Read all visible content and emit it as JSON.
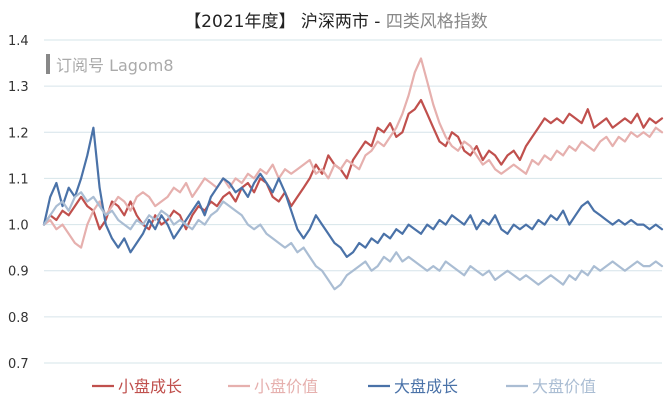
{
  "chart_data": {
    "type": "line",
    "title_main": "【2021年度】 沪深两市",
    "title_sep": " - ",
    "title_sub": "四类风格指数",
    "watermark": "订阅号 Lagom8",
    "ylim": [
      0.7,
      1.4
    ],
    "yticks": [
      "0.7",
      "0.8",
      "0.9",
      "1.0",
      "1.1",
      "1.2",
      "1.3",
      "1.4"
    ],
    "grid": true,
    "legend_position": "bottom",
    "x": [
      "p00",
      "p01",
      "p02",
      "p03",
      "p04",
      "p05",
      "p06",
      "p07",
      "p08",
      "p09",
      "p10",
      "p11",
      "p12",
      "p13",
      "p14",
      "p15",
      "p16",
      "p17",
      "p18",
      "p19",
      "p20",
      "p21",
      "p22",
      "p23",
      "p24",
      "p25",
      "p26",
      "p27",
      "p28",
      "p29",
      "p30",
      "p31",
      "p32",
      "p33",
      "p34",
      "p35",
      "p36",
      "p37",
      "p38",
      "p39",
      "p40",
      "p41",
      "p42",
      "p43",
      "p44",
      "p45",
      "p46",
      "p47",
      "p48",
      "p49",
      "p50",
      "p51",
      "p52",
      "p53",
      "p54",
      "p55",
      "p56",
      "p57",
      "p58",
      "p59",
      "p60",
      "p61",
      "p62",
      "p63",
      "p64",
      "p65",
      "p66",
      "p67",
      "p68",
      "p69",
      "p70",
      "p71",
      "p72",
      "p73",
      "p74",
      "p75",
      "p76",
      "p77",
      "p78",
      "p79",
      "p80",
      "p81",
      "p82",
      "p83",
      "p84",
      "p85",
      "p86",
      "p87",
      "p88",
      "p89",
      "p90",
      "p91",
      "p92",
      "p93",
      "p94",
      "p95",
      "p96",
      "p97",
      "p98",
      "p99",
      "p100"
    ],
    "series": [
      {
        "name": "小盘成长",
        "color": "#c0504d",
        "values": [
          1.0,
          1.02,
          1.01,
          1.03,
          1.02,
          1.04,
          1.06,
          1.04,
          1.03,
          0.99,
          1.01,
          1.05,
          1.04,
          1.02,
          1.05,
          1.02,
          1.0,
          0.99,
          1.02,
          1.0,
          1.01,
          1.03,
          1.02,
          0.99,
          1.02,
          1.04,
          1.03,
          1.05,
          1.04,
          1.06,
          1.07,
          1.05,
          1.08,
          1.09,
          1.07,
          1.1,
          1.09,
          1.06,
          1.05,
          1.07,
          1.04,
          1.06,
          1.08,
          1.1,
          1.13,
          1.11,
          1.15,
          1.13,
          1.12,
          1.1,
          1.14,
          1.16,
          1.18,
          1.17,
          1.21,
          1.2,
          1.22,
          1.19,
          1.2,
          1.24,
          1.25,
          1.27,
          1.24,
          1.21,
          1.18,
          1.17,
          1.2,
          1.19,
          1.16,
          1.15,
          1.17,
          1.14,
          1.16,
          1.15,
          1.13,
          1.15,
          1.16,
          1.14,
          1.17,
          1.19,
          1.21,
          1.23,
          1.22,
          1.23,
          1.22,
          1.24,
          1.23,
          1.22,
          1.25,
          1.21,
          1.22,
          1.23,
          1.21,
          1.22,
          1.23,
          1.22,
          1.24,
          1.21,
          1.23,
          1.22,
          1.23
        ]
      },
      {
        "name": "小盘价值",
        "color": "#e6b0ae",
        "values": [
          1.0,
          1.01,
          0.99,
          1.0,
          0.98,
          0.96,
          0.95,
          1.0,
          1.03,
          1.05,
          1.02,
          1.04,
          1.06,
          1.05,
          1.03,
          1.06,
          1.07,
          1.06,
          1.04,
          1.05,
          1.06,
          1.08,
          1.07,
          1.09,
          1.06,
          1.08,
          1.1,
          1.09,
          1.08,
          1.1,
          1.08,
          1.1,
          1.09,
          1.11,
          1.1,
          1.12,
          1.11,
          1.13,
          1.1,
          1.12,
          1.11,
          1.12,
          1.13,
          1.14,
          1.11,
          1.12,
          1.1,
          1.13,
          1.12,
          1.14,
          1.13,
          1.12,
          1.15,
          1.16,
          1.18,
          1.17,
          1.19,
          1.21,
          1.24,
          1.28,
          1.33,
          1.36,
          1.31,
          1.26,
          1.22,
          1.19,
          1.17,
          1.16,
          1.18,
          1.17,
          1.15,
          1.13,
          1.14,
          1.12,
          1.11,
          1.12,
          1.13,
          1.12,
          1.11,
          1.14,
          1.13,
          1.15,
          1.14,
          1.16,
          1.15,
          1.17,
          1.16,
          1.18,
          1.17,
          1.16,
          1.18,
          1.19,
          1.17,
          1.19,
          1.18,
          1.2,
          1.19,
          1.2,
          1.19,
          1.21,
          1.2
        ]
      },
      {
        "name": "大盘成长",
        "color": "#4a72a8",
        "values": [
          1.0,
          1.06,
          1.09,
          1.04,
          1.08,
          1.06,
          1.1,
          1.15,
          1.21,
          1.08,
          1.0,
          0.97,
          0.95,
          0.97,
          0.94,
          0.96,
          0.98,
          1.01,
          0.99,
          1.02,
          1.0,
          0.97,
          0.99,
          1.01,
          1.03,
          1.05,
          1.02,
          1.06,
          1.08,
          1.1,
          1.09,
          1.07,
          1.08,
          1.06,
          1.09,
          1.11,
          1.09,
          1.07,
          1.1,
          1.07,
          1.03,
          0.99,
          0.97,
          0.99,
          1.02,
          1.0,
          0.98,
          0.96,
          0.95,
          0.93,
          0.94,
          0.96,
          0.95,
          0.97,
          0.96,
          0.98,
          0.97,
          0.99,
          0.98,
          1.0,
          0.99,
          0.98,
          1.0,
          0.99,
          1.01,
          1.0,
          1.02,
          1.01,
          1.0,
          1.02,
          0.99,
          1.01,
          1.0,
          1.02,
          0.99,
          0.98,
          1.0,
          0.99,
          1.0,
          0.99,
          1.01,
          1.0,
          1.02,
          1.01,
          1.03,
          1.0,
          1.02,
          1.04,
          1.05,
          1.03,
          1.02,
          1.01,
          1.0,
          1.01,
          1.0,
          1.01,
          1.0,
          1.0,
          0.99,
          1.0,
          0.99
        ]
      },
      {
        "name": "大盘价值",
        "color": "#aabdd3",
        "values": [
          1.0,
          1.02,
          1.04,
          1.05,
          1.03,
          1.06,
          1.07,
          1.05,
          1.06,
          1.04,
          1.02,
          1.03,
          1.01,
          1.0,
          0.99,
          1.01,
          1.0,
          1.02,
          1.01,
          1.03,
          1.02,
          1.0,
          1.01,
          1.0,
          0.99,
          1.01,
          1.0,
          1.02,
          1.03,
          1.05,
          1.04,
          1.03,
          1.02,
          1.0,
          0.99,
          1.0,
          0.98,
          0.97,
          0.96,
          0.95,
          0.96,
          0.94,
          0.95,
          0.93,
          0.91,
          0.9,
          0.88,
          0.86,
          0.87,
          0.89,
          0.9,
          0.91,
          0.92,
          0.9,
          0.91,
          0.93,
          0.92,
          0.94,
          0.92,
          0.93,
          0.92,
          0.91,
          0.9,
          0.91,
          0.9,
          0.92,
          0.91,
          0.9,
          0.89,
          0.91,
          0.9,
          0.89,
          0.9,
          0.88,
          0.89,
          0.9,
          0.89,
          0.88,
          0.89,
          0.88,
          0.87,
          0.88,
          0.89,
          0.88,
          0.87,
          0.89,
          0.88,
          0.9,
          0.89,
          0.91,
          0.9,
          0.91,
          0.92,
          0.91,
          0.9,
          0.91,
          0.92,
          0.91,
          0.91,
          0.92,
          0.91
        ]
      }
    ]
  }
}
